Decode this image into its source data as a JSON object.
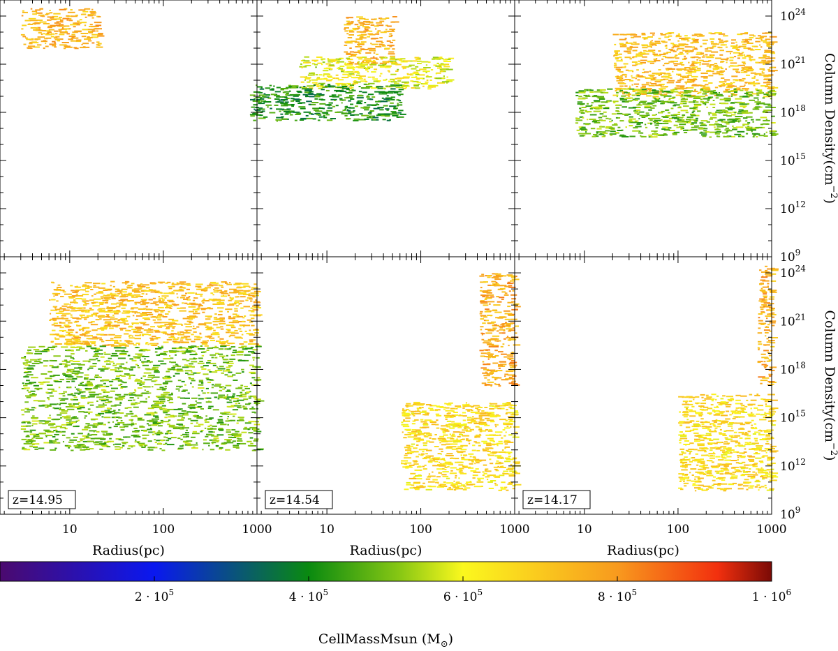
{
  "chart_data": {
    "type": "heatmap",
    "description_layout": "2x3 grid of phase plots",
    "x_axis": {
      "label": "Radius(pc)",
      "scale": "log",
      "range": [
        1.8,
        1000
      ],
      "ticks": [
        10,
        100,
        1000
      ],
      "tick_labels": [
        "10",
        "100",
        "1000"
      ]
    },
    "y_axis": {
      "label": "Column Density(cm",
      "label_exp": "−2",
      "label_close": ")",
      "scale": "log",
      "range_exp": [
        9,
        25
      ],
      "ticks_exp": [
        9,
        12,
        15,
        18,
        21,
        24
      ]
    },
    "colorbar": {
      "label": "CellMassMsun (M",
      "label_sub": "⊙",
      "label_close": ")",
      "range": [
        0,
        1000000
      ],
      "ticks": [
        {
          "value": 200000,
          "mantissa": "2 · 10",
          "exp": "5"
        },
        {
          "value": 400000,
          "mantissa": "4 · 10",
          "exp": "5"
        },
        {
          "value": 600000,
          "mantissa": "6 · 10",
          "exp": "5"
        },
        {
          "value": 800000,
          "mantissa": "8 · 10",
          "exp": "5"
        },
        {
          "value": 1000000,
          "mantissa": "1 · 10",
          "exp": "6"
        }
      ],
      "stops": [
        {
          "v": 0.0,
          "color": "#4b0a6e"
        },
        {
          "v": 0.2,
          "color": "#0a18f0"
        },
        {
          "v": 0.4,
          "color": "#0a8a10"
        },
        {
          "v": 0.52,
          "color": "#8ac814"
        },
        {
          "v": 0.6,
          "color": "#fbf81e"
        },
        {
          "v": 0.8,
          "color": "#f89a1e"
        },
        {
          "v": 0.93,
          "color": "#f2300e"
        },
        {
          "v": 1.0,
          "color": "#7a0a06"
        }
      ]
    },
    "panels": [
      {
        "id": "top-left",
        "redshift": "",
        "regions": [
          {
            "x0": 3,
            "x1": 20,
            "y0": 22.0,
            "y1": 24.5,
            "level": 0.74
          }
        ]
      },
      {
        "id": "top-middle",
        "redshift": "",
        "regions": [
          {
            "x0": 15,
            "x1": 50,
            "y0": 21.0,
            "y1": 24.0,
            "level": 0.74
          },
          {
            "x0": 5,
            "x1": 200,
            "y0": 19.5,
            "y1": 21.5,
            "level": 0.6
          },
          {
            "x0": 1.5,
            "x1": 60,
            "y0": 17.5,
            "y1": 19.8,
            "level": 0.42
          }
        ]
      },
      {
        "id": "top-right",
        "redshift": "",
        "regions": [
          {
            "x0": 20,
            "x1": 1000,
            "y0": 19.0,
            "y1": 23.0,
            "level": 0.72
          },
          {
            "x0": 8,
            "x1": 1000,
            "y0": 16.5,
            "y1": 19.5,
            "level": 0.5
          }
        ]
      },
      {
        "id": "bottom-left",
        "redshift": "z=14.95",
        "regions": [
          {
            "x0": 6,
            "x1": 1000,
            "y0": 19.5,
            "y1": 23.5,
            "level": 0.72
          },
          {
            "x0": 3,
            "x1": 1000,
            "y0": 13.0,
            "y1": 19.5,
            "level": 0.5
          }
        ]
      },
      {
        "id": "bottom-middle",
        "redshift": "z=14.54",
        "regions": [
          {
            "x0": 420,
            "x1": 1000,
            "y0": 17.0,
            "y1": 24.0,
            "level": 0.76
          },
          {
            "x0": 60,
            "x1": 1000,
            "y0": 10.5,
            "y1": 16.0,
            "level": 0.66
          }
        ]
      },
      {
        "id": "bottom-right",
        "redshift": "z=14.17",
        "regions": [
          {
            "x0": 700,
            "x1": 1000,
            "y0": 17.0,
            "y1": 24.5,
            "level": 0.76
          },
          {
            "x0": 100,
            "x1": 1000,
            "y0": 10.5,
            "y1": 16.5,
            "level": 0.66
          }
        ]
      }
    ]
  }
}
